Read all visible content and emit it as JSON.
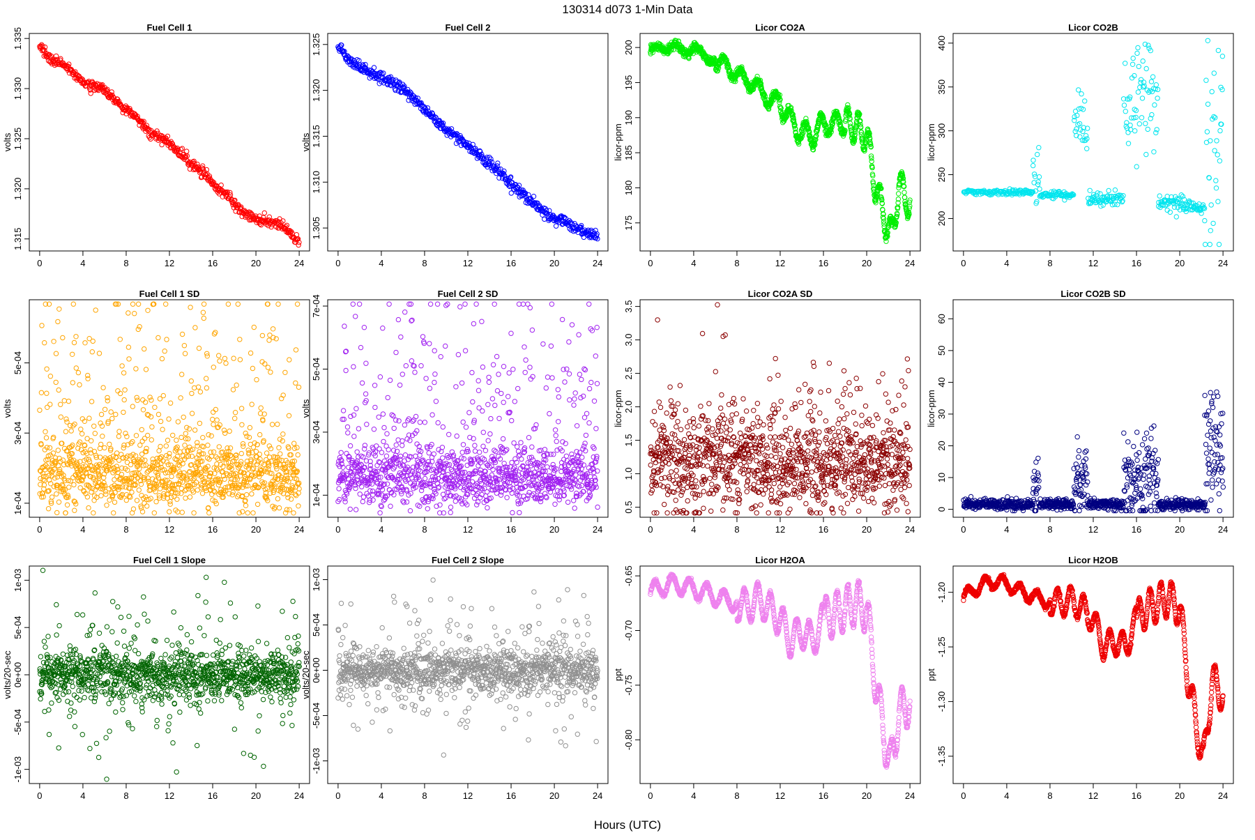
{
  "page": {
    "title": "130314   d073   1-Min Data",
    "xlabel": "Hours (UTC)"
  },
  "chart_data": [
    {
      "type": "scatter",
      "title": "Fuel Cell 1",
      "ylabel": "volts",
      "xlabel": "",
      "color": "#ff0000",
      "x_range": [
        0,
        24
      ],
      "xticks": [
        0,
        4,
        8,
        12,
        16,
        20,
        24
      ],
      "ylim": [
        1.3138,
        1.3355
      ],
      "yticks": [
        1.315,
        1.32,
        1.325,
        1.33,
        1.335
      ],
      "ytick_labels": [
        "1.315",
        "1.320",
        "1.325",
        "1.330",
        "1.335"
      ],
      "series_shape": {
        "kind": "trend",
        "knots": [
          [
            0,
            1.3342
          ],
          [
            1,
            1.333
          ],
          [
            2,
            1.3325
          ],
          [
            3,
            1.3318
          ],
          [
            4,
            1.3305
          ],
          [
            5,
            1.3303
          ],
          [
            6,
            1.3298
          ],
          [
            7,
            1.3288
          ],
          [
            8,
            1.3278
          ],
          [
            9,
            1.327
          ],
          [
            10,
            1.3258
          ],
          [
            11,
            1.3252
          ],
          [
            12,
            1.3245
          ],
          [
            13,
            1.3235
          ],
          [
            14,
            1.3225
          ],
          [
            15,
            1.3218
          ],
          [
            16,
            1.3205
          ],
          [
            17,
            1.3195
          ],
          [
            18,
            1.3185
          ],
          [
            19,
            1.3175
          ],
          [
            20,
            1.317
          ],
          [
            21,
            1.3168
          ],
          [
            22,
            1.3165
          ],
          [
            23,
            1.3158
          ],
          [
            24,
            1.3146
          ]
        ],
        "noise": 0.00025,
        "step": 0.045
      }
    },
    {
      "type": "scatter",
      "title": "Fuel Cell 2",
      "ylabel": "volts",
      "xlabel": "",
      "color": "#0000ff",
      "x_range": [
        0,
        24
      ],
      "xticks": [
        0,
        4,
        8,
        12,
        16,
        20,
        24
      ],
      "ylim": [
        1.3025,
        1.3262
      ],
      "yticks": [
        1.305,
        1.31,
        1.315,
        1.32,
        1.325
      ],
      "ytick_labels": [
        "1.305",
        "1.310",
        "1.315",
        "1.320",
        "1.325"
      ],
      "series_shape": {
        "kind": "trend",
        "knots": [
          [
            0,
            1.3248
          ],
          [
            1,
            1.3233
          ],
          [
            2,
            1.3225
          ],
          [
            3,
            1.3218
          ],
          [
            4,
            1.3215
          ],
          [
            5,
            1.3208
          ],
          [
            6,
            1.32
          ],
          [
            7,
            1.3192
          ],
          [
            8,
            1.318
          ],
          [
            9,
            1.3168
          ],
          [
            10,
            1.3155
          ],
          [
            11,
            1.315
          ],
          [
            12,
            1.314
          ],
          [
            13,
            1.313
          ],
          [
            14,
            1.312
          ],
          [
            15,
            1.311
          ],
          [
            16,
            1.3098
          ],
          [
            17,
            1.3088
          ],
          [
            18,
            1.3078
          ],
          [
            19,
            1.3068
          ],
          [
            20,
            1.306
          ],
          [
            21,
            1.3058
          ],
          [
            22,
            1.305
          ],
          [
            23,
            1.3045
          ],
          [
            24,
            1.3042
          ]
        ],
        "noise": 0.00028,
        "step": 0.045
      }
    },
    {
      "type": "scatter",
      "title": "Licor CO2A",
      "ylabel": "licor-ppm",
      "xlabel": "",
      "color": "#00ee00",
      "x_range": [
        0,
        24
      ],
      "xticks": [
        0,
        4,
        8,
        12,
        16,
        20,
        24
      ],
      "ylim": [
        171,
        202
      ],
      "yticks": [
        175,
        180,
        185,
        190,
        195,
        200
      ],
      "ytick_labels": [
        "175",
        "180",
        "185",
        "190",
        "195",
        "200"
      ],
      "series_shape": {
        "kind": "trend",
        "knots": [
          [
            0,
            199.6
          ],
          [
            1,
            199.8
          ],
          [
            2,
            200.3
          ],
          [
            3,
            199.4
          ],
          [
            4,
            200.0
          ],
          [
            5,
            198.6
          ],
          [
            6,
            198.2
          ],
          [
            7,
            197.3
          ],
          [
            8,
            196.2
          ],
          [
            9,
            195.2
          ],
          [
            10,
            194.2
          ],
          [
            11,
            192.6
          ],
          [
            12,
            192.2
          ],
          [
            13,
            189.5
          ],
          [
            14,
            187.8
          ],
          [
            15,
            187.5
          ],
          [
            16,
            189.2
          ],
          [
            17,
            189.0
          ],
          [
            18,
            189.4
          ],
          [
            19,
            188.6
          ],
          [
            20,
            187.5
          ],
          [
            20.7,
            181.0
          ],
          [
            21.5,
            176.5
          ],
          [
            22.3,
            173.0
          ],
          [
            23,
            180.5
          ],
          [
            24,
            177.5
          ]
        ],
        "waves": [
          [
            2.0,
            0.5
          ],
          [
            1.6,
            1.0
          ],
          [
            1.4,
            1.5
          ],
          [
            1.0,
            2.2
          ]
        ],
        "noise": 0.3,
        "step": 0.02
      }
    },
    {
      "type": "scatter",
      "title": "Licor CO2B",
      "ylabel": "licor-ppm",
      "xlabel": "",
      "color": "#00e5ee",
      "x_range": [
        0,
        24
      ],
      "xticks": [
        0,
        4,
        8,
        12,
        16,
        20,
        24
      ],
      "ylim": [
        163,
        411
      ],
      "yticks": [
        200,
        250,
        300,
        350,
        400
      ],
      "ytick_labels": [
        "200",
        "250",
        "300",
        "350",
        "400"
      ],
      "series_shape": {
        "kind": "regimes",
        "segments": [
          [
            0,
            6.4,
            230,
            1.5,
            0
          ],
          [
            6.4,
            7.0,
            240,
            18,
            0.3
          ],
          [
            7.0,
            10.2,
            227,
            2,
            0
          ],
          [
            10.2,
            11.5,
            305,
            15,
            0.3
          ],
          [
            11.5,
            14.8,
            222,
            4,
            0.05
          ],
          [
            14.8,
            18.0,
            330,
            25,
            0.35
          ],
          [
            18.0,
            21.0,
            216,
            5,
            0.1
          ],
          [
            21.0,
            22.3,
            212,
            3,
            0.1
          ],
          [
            22.3,
            24,
            270,
            55,
            0.35
          ]
        ],
        "step": 0.05
      }
    },
    {
      "type": "scatter",
      "title": "Fuel Cell 1 SD",
      "ylabel": "volts",
      "xlabel": "",
      "color": "#ffa500",
      "x_range": [
        0,
        24
      ],
      "xticks": [
        0,
        4,
        8,
        12,
        16,
        20,
        24
      ],
      "ylim": [
        6e-05,
        0.00068
      ],
      "yticks": [
        0.0001,
        0.0003,
        0.0005
      ],
      "ytick_labels": [
        "1e-04",
        "3e-04",
        "5e-04"
      ],
      "series_shape": {
        "kind": "skew",
        "base": 0.00018,
        "spread": 5e-05,
        "tail": 0.00045,
        "tail_prob": 0.2,
        "step": 0.02
      }
    },
    {
      "type": "scatter",
      "title": "Fuel Cell 2 SD",
      "ylabel": "volts",
      "xlabel": "",
      "color": "#a020f0",
      "x_range": [
        0,
        24
      ],
      "xticks": [
        0,
        4,
        8,
        12,
        16,
        20,
        24
      ],
      "ylim": [
        3e-05,
        0.00072
      ],
      "yticks": [
        0.0001,
        0.0003,
        0.0005,
        0.0007
      ],
      "ytick_labels": [
        "1e-04",
        "3e-04",
        "5e-04",
        "7e-04"
      ],
      "series_shape": {
        "kind": "skew",
        "base": 0.00016,
        "spread": 5e-05,
        "tail": 0.00048,
        "tail_prob": 0.2,
        "step": 0.02
      }
    },
    {
      "type": "scatter",
      "title": "Licor CO2A SD",
      "ylabel": "licor-ppm",
      "xlabel": "",
      "color": "#8b0000",
      "x_range": [
        0,
        24
      ],
      "xticks": [
        0,
        4,
        8,
        12,
        16,
        20,
        24
      ],
      "ylim": [
        0.35,
        3.6
      ],
      "yticks": [
        0.5,
        1.0,
        1.5,
        2.0,
        2.5,
        3.0,
        3.5
      ],
      "ytick_labels": [
        "0.5",
        "1.0",
        "1.5",
        "2.0",
        "2.5",
        "3.0",
        "3.5"
      ],
      "series_shape": {
        "kind": "skew",
        "base": 1.15,
        "spread": 0.35,
        "tail": 1.2,
        "tail_prob": 0.12,
        "step": 0.02
      }
    },
    {
      "type": "scatter",
      "title": "Licor CO2B SD",
      "ylabel": "licor-ppm",
      "xlabel": "",
      "color": "#000080",
      "x_range": [
        0,
        24
      ],
      "xticks": [
        0,
        4,
        8,
        12,
        16,
        20,
        24
      ],
      "ylim": [
        -2.5,
        66
      ],
      "yticks": [
        0,
        10,
        20,
        30,
        40,
        50,
        60
      ],
      "ytick_labels": [
        "0",
        "10",
        "20",
        "30",
        "40",
        "50",
        "60"
      ],
      "series_shape": {
        "kind": "regimes",
        "segments": [
          [
            0,
            6.4,
            1.5,
            0.8,
            0.03
          ],
          [
            6.4,
            7.0,
            5,
            6,
            0.3
          ],
          [
            7.0,
            10.2,
            1.5,
            0.8,
            0.02
          ],
          [
            10.2,
            11.5,
            8,
            6,
            0.2
          ],
          [
            11.5,
            14.8,
            1.5,
            0.8,
            0.02
          ],
          [
            14.8,
            18.0,
            10,
            8,
            0.2
          ],
          [
            18.0,
            22.3,
            1.5,
            0.8,
            0.02
          ],
          [
            22.3,
            24,
            12,
            10,
            0.25
          ]
        ],
        "step": 0.025
      }
    },
    {
      "type": "scatter",
      "title": "Fuel Cell 1 Slope",
      "ylabel": "volts/20-sec",
      "xlabel": "",
      "color": "#006400",
      "x_range": [
        0,
        24
      ],
      "xticks": [
        0,
        4,
        8,
        12,
        16,
        20,
        24
      ],
      "ylim": [
        -0.00115,
        0.00115
      ],
      "yticks": [
        -0.001,
        -0.0005,
        0,
        0.0005,
        0.001
      ],
      "ytick_labels": [
        "-1e-03",
        "-5e-04",
        "0e+00",
        "5e-04",
        "1e-03"
      ],
      "series_shape": {
        "kind": "symmetric",
        "base": 0.0,
        "spread": 0.00012,
        "tail": 0.00045,
        "tail_prob": 0.2,
        "step": 0.02
      }
    },
    {
      "type": "scatter",
      "title": "Fuel Cell 2 Slope",
      "ylabel": "volts/20-sec",
      "xlabel": "",
      "color": "#909090",
      "x_range": [
        0,
        24
      ],
      "xticks": [
        0,
        4,
        8,
        12,
        16,
        20,
        24
      ],
      "ylim": [
        -0.00125,
        0.00115
      ],
      "yticks": [
        -0.001,
        -0.0005,
        0,
        0.0005,
        0.001
      ],
      "ytick_labels": [
        "-1e-03",
        "-5e-04",
        "0e+00",
        "5e-04",
        "1e-03"
      ],
      "series_shape": {
        "kind": "symmetric",
        "base": 0.0,
        "spread": 0.00012,
        "tail": 0.00045,
        "tail_prob": 0.2,
        "step": 0.02
      }
    },
    {
      "type": "scatter",
      "title": "Licor H2OA",
      "ylabel": "ppt",
      "xlabel": "",
      "color": "#ee82ee",
      "x_range": [
        0,
        24
      ],
      "xticks": [
        0,
        4,
        8,
        12,
        16,
        20,
        24
      ],
      "ylim": [
        -0.84,
        -0.641
      ],
      "yticks": [
        -0.8,
        -0.75,
        -0.7,
        -0.65
      ],
      "ytick_labels": [
        "-0.80",
        "-0.75",
        "-0.70",
        "-0.65"
      ],
      "series_shape": {
        "kind": "trend",
        "knots": [
          [
            0,
            -0.665
          ],
          [
            1,
            -0.66
          ],
          [
            2,
            -0.657
          ],
          [
            3,
            -0.659
          ],
          [
            4,
            -0.662
          ],
          [
            5,
            -0.665
          ],
          [
            6,
            -0.669
          ],
          [
            7,
            -0.672
          ],
          [
            8,
            -0.675
          ],
          [
            9,
            -0.678
          ],
          [
            10,
            -0.671
          ],
          [
            11,
            -0.68
          ],
          [
            12,
            -0.69
          ],
          [
            13,
            -0.71
          ],
          [
            14,
            -0.7
          ],
          [
            15,
            -0.71
          ],
          [
            16,
            -0.69
          ],
          [
            17,
            -0.685
          ],
          [
            18,
            -0.68
          ],
          [
            19,
            -0.675
          ],
          [
            20,
            -0.68
          ],
          [
            20.8,
            -0.745
          ],
          [
            21.5,
            -0.79
          ],
          [
            22.2,
            -0.825
          ],
          [
            23,
            -0.775
          ],
          [
            24,
            -0.765
          ]
        ],
        "waves": [
          [
            1.6,
            0.008
          ],
          [
            1.2,
            0.015
          ],
          [
            1.0,
            0.02
          ]
        ],
        "noise": 0.001,
        "step": 0.02
      }
    },
    {
      "type": "scatter",
      "title": "Licor H2OB",
      "ylabel": "ppt",
      "xlabel": "",
      "color": "#ee0000",
      "x_range": [
        0,
        24
      ],
      "xticks": [
        0,
        4,
        8,
        12,
        16,
        20,
        24
      ],
      "ylim": [
        -1.375,
        -1.176
      ],
      "yticks": [
        -1.35,
        -1.3,
        -1.25,
        -1.2
      ],
      "ytick_labels": [
        "-1.35",
        "-1.30",
        "-1.25",
        "-1.20"
      ],
      "series_shape": {
        "kind": "trend",
        "knots": [
          [
            0,
            -1.205
          ],
          [
            1,
            -1.197
          ],
          [
            2,
            -1.192
          ],
          [
            3,
            -1.19
          ],
          [
            4,
            -1.192
          ],
          [
            5,
            -1.198
          ],
          [
            6,
            -1.202
          ],
          [
            7,
            -1.206
          ],
          [
            8,
            -1.208
          ],
          [
            9,
            -1.21
          ],
          [
            10,
            -1.207
          ],
          [
            11,
            -1.215
          ],
          [
            12,
            -1.225
          ],
          [
            13,
            -1.25
          ],
          [
            14,
            -1.245
          ],
          [
            15,
            -1.25
          ],
          [
            16,
            -1.225
          ],
          [
            17,
            -1.215
          ],
          [
            18,
            -1.21
          ],
          [
            19,
            -1.205
          ],
          [
            20,
            -1.215
          ],
          [
            20.8,
            -1.28
          ],
          [
            21.5,
            -1.32
          ],
          [
            22.2,
            -1.355
          ],
          [
            23,
            -1.28
          ],
          [
            24,
            -1.295
          ]
        ],
        "waves": [
          [
            1.6,
            0.006
          ],
          [
            1.2,
            0.012
          ],
          [
            1.0,
            0.016
          ]
        ],
        "noise": 0.001,
        "step": 0.02
      }
    }
  ]
}
